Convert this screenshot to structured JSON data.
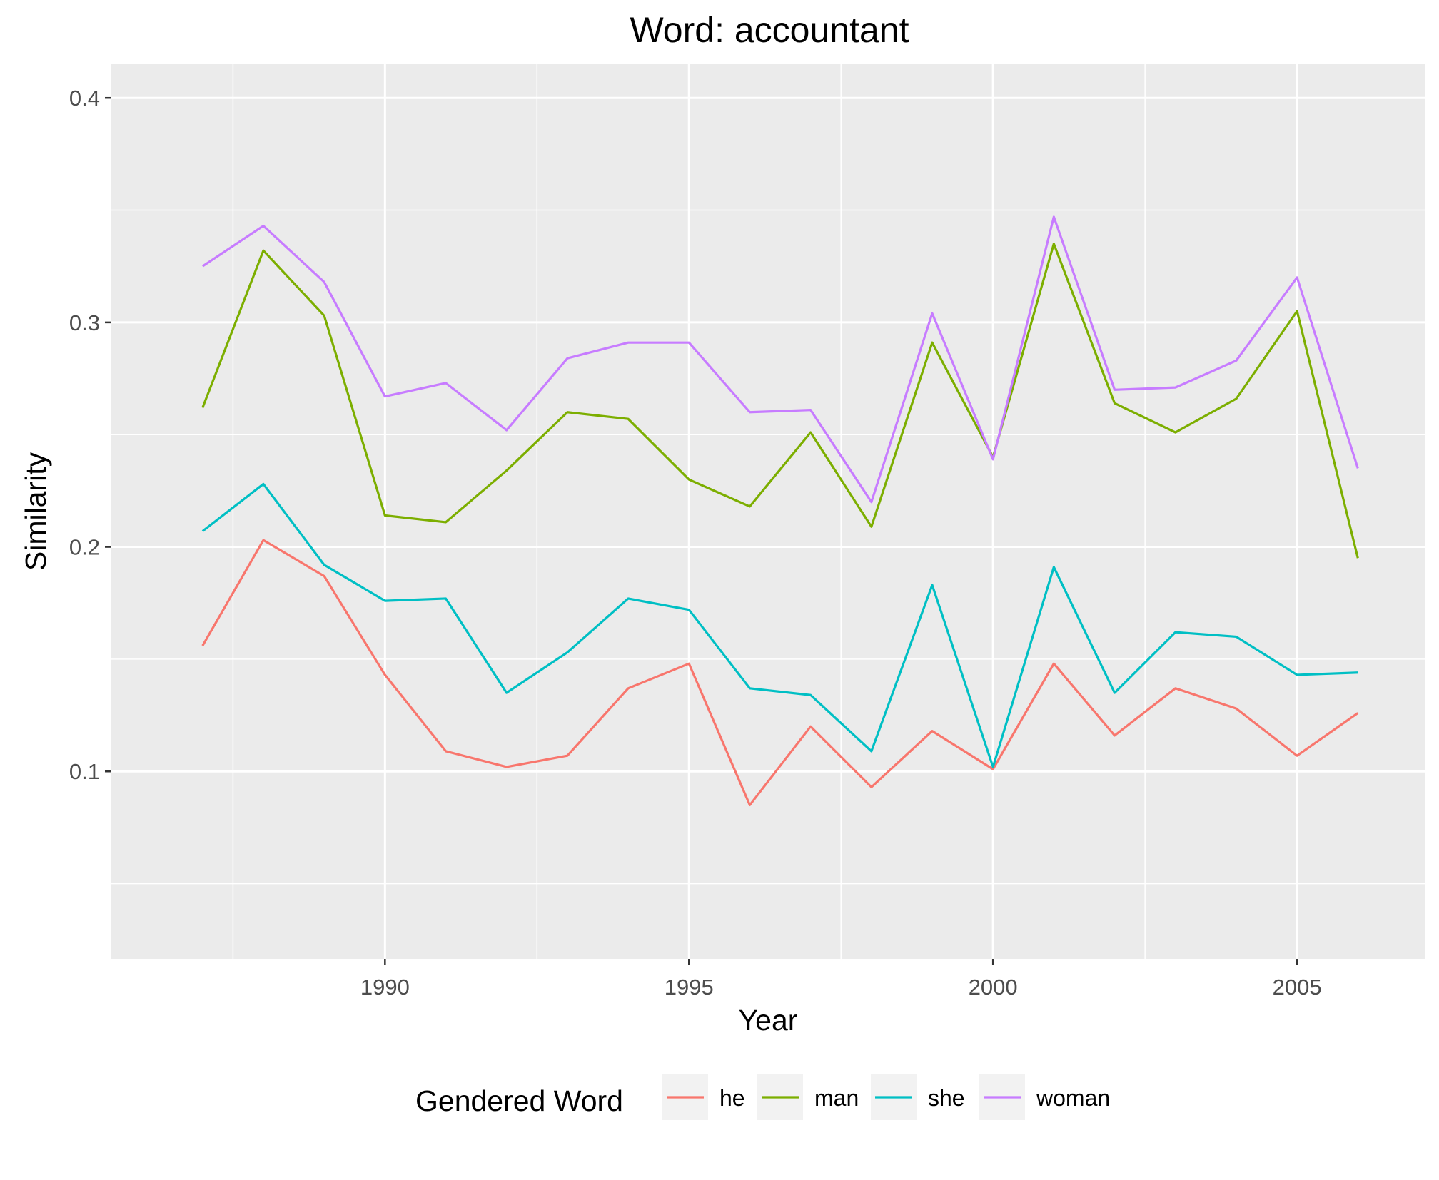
{
  "chart_data": {
    "type": "line",
    "title": "Word: accountant",
    "xlabel": "Year",
    "ylabel": "Similarity",
    "x": [
      1987,
      1988,
      1989,
      1990,
      1991,
      1992,
      1993,
      1994,
      1995,
      1996,
      1997,
      1998,
      1999,
      2000,
      2001,
      2002,
      2003,
      2004,
      2005,
      2006
    ],
    "xlim": [
      1985.5,
      2007.1
    ],
    "ylim": [
      0.0165,
      0.415
    ],
    "x_ticks": [
      1990,
      1995,
      2000,
      2005
    ],
    "x_tick_labels": [
      "1990",
      "1995",
      "2000",
      "2005"
    ],
    "x_minor_ticks": [
      1987.5,
      1992.5,
      1997.5,
      2002.5
    ],
    "y_ticks": [
      0.1,
      0.2,
      0.3,
      0.4
    ],
    "y_tick_labels": [
      "0.1",
      "0.2",
      "0.3",
      "0.4"
    ],
    "y_minor_ticks": [
      0.05,
      0.15,
      0.25,
      0.35
    ],
    "grid": true,
    "legend": {
      "title": "Gendered Word",
      "position": "bottom"
    },
    "series": [
      {
        "name": "he",
        "color": "#F8766D",
        "values": [
          0.156,
          0.203,
          0.187,
          0.143,
          0.109,
          0.102,
          0.107,
          0.137,
          0.148,
          0.085,
          0.12,
          0.093,
          0.118,
          0.101,
          0.148,
          0.116,
          0.137,
          0.128,
          0.107,
          0.126
        ]
      },
      {
        "name": "man",
        "color": "#7CAE00",
        "values": [
          0.262,
          0.332,
          0.303,
          0.214,
          0.211,
          0.234,
          0.26,
          0.257,
          0.23,
          0.218,
          0.251,
          0.209,
          0.291,
          0.24,
          0.335,
          0.264,
          0.251,
          0.266,
          0.305,
          0.195
        ]
      },
      {
        "name": "she",
        "color": "#00BFC4",
        "values": [
          0.207,
          0.228,
          0.192,
          0.176,
          0.177,
          0.135,
          0.153,
          0.177,
          0.172,
          0.137,
          0.134,
          0.109,
          0.183,
          0.102,
          0.191,
          0.135,
          0.162,
          0.16,
          0.143,
          0.144
        ]
      },
      {
        "name": "woman",
        "color": "#C77CFF",
        "values": [
          0.325,
          0.343,
          0.318,
          0.267,
          0.273,
          0.252,
          0.284,
          0.291,
          0.291,
          0.26,
          0.261,
          0.22,
          0.304,
          0.239,
          0.347,
          0.27,
          0.271,
          0.283,
          0.32,
          0.235
        ]
      }
    ]
  }
}
